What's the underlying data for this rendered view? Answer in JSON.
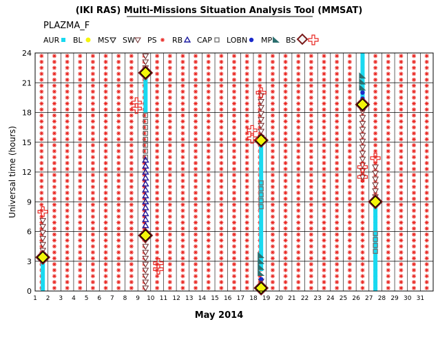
{
  "title": "(IKI RAS) Multi-Missions Situation Analysis Tool (MMSAT)",
  "subtitle": "PLAZMA_F",
  "legend": [
    {
      "label": "AUR",
      "symbol": "square",
      "color": "#19d9f0"
    },
    {
      "label": "BL",
      "symbol": "circle",
      "color": "#f5f50a"
    },
    {
      "label": "MS",
      "symbol": "triangle-down",
      "color": "#000000"
    },
    {
      "label": "SW",
      "symbol": "triangle-down",
      "color": "#6a2a2a"
    },
    {
      "label": "PS",
      "symbol": "star",
      "color": "#e8231e"
    },
    {
      "label": "RB",
      "symbol": "triangle-up",
      "color": "#1a1aa0"
    },
    {
      "label": "CAP",
      "symbol": "open-square",
      "color": "#6e6e6e"
    },
    {
      "label": "LOBN",
      "symbol": "filled-circle",
      "color": "#1a2acb"
    },
    {
      "label": "MP",
      "symbol": "wedge",
      "color": "#2a6e6e"
    },
    {
      "label": "BS",
      "symbol": "diamond",
      "color": "#7a1a1a"
    },
    {
      "label": "",
      "symbol": "cross",
      "color": "#e8231e"
    }
  ],
  "chart_data": {
    "type": "scatter",
    "xlabel": "May 2014",
    "ylabel": "Universal time (hours)",
    "xlim": [
      1,
      32
    ],
    "ylim": [
      0,
      24
    ],
    "xticks": [
      "1",
      "2",
      "3",
      "4",
      "5",
      "6",
      "7",
      "8",
      "9",
      "10",
      "11",
      "12",
      "13",
      "14",
      "15",
      "16",
      "17",
      "18",
      "19",
      "20",
      "21",
      "22",
      "23",
      "24",
      "25",
      "26",
      "27",
      "28",
      "29",
      "30",
      "31"
    ],
    "yticks": [
      "0",
      "3",
      "6",
      "9",
      "12",
      "15",
      "18",
      "21",
      "24"
    ],
    "grid": true,
    "background_region": {
      "name": "PS",
      "symbol": "star",
      "color": "#e8231e",
      "x_range": [
        1.5,
        31.5
      ],
      "y_range": [
        0,
        24
      ],
      "x_step": 1,
      "y_step": 0.6
    },
    "series": [
      {
        "name": "AUR",
        "symbol": "square",
        "color": "#19d9f0",
        "segments": [
          {
            "x": 1.6,
            "y": [
              0,
              2.8
            ]
          },
          {
            "x": 9.6,
            "y": [
              18,
              21.5
            ]
          },
          {
            "x": 18.6,
            "y": [
              2,
              15
            ]
          },
          {
            "x": 26.5,
            "y": [
              19,
              24
            ]
          },
          {
            "x": 27.5,
            "y": [
              0,
              8.8
            ]
          }
        ]
      },
      {
        "name": "SW",
        "symbol": "triangle-down",
        "color": "#6a2a2a",
        "segments": [
          {
            "x": 1.6,
            "y": [
              3.5,
              7.5
            ]
          },
          {
            "x": 9.6,
            "y": [
              0.3,
              5.3
            ]
          },
          {
            "x": 9.6,
            "y": [
              22.5,
              24
            ]
          },
          {
            "x": 18.6,
            "y": [
              15.5,
              20
            ]
          },
          {
            "x": 18.6,
            "y": [
              1,
              1
            ]
          },
          {
            "x": 26.5,
            "y": [
              11.5,
              18.5
            ]
          },
          {
            "x": 27.5,
            "y": [
              9.5,
              12.5
            ]
          }
        ]
      },
      {
        "name": "CAP",
        "symbol": "open-square",
        "color": "#6e6e6e",
        "segments": [
          {
            "x": 9.6,
            "y": [
              13.5,
              18
            ]
          },
          {
            "x": 18.6,
            "y": [
              8.5,
              11
            ]
          },
          {
            "x": 27.5,
            "y": [
              4,
              6
            ]
          }
        ]
      },
      {
        "name": "RB",
        "symbol": "triangle-up",
        "color": "#1a1aa0",
        "segments": [
          {
            "x": 9.6,
            "y": [
              6,
              13.5
            ]
          }
        ]
      },
      {
        "name": "LOBN",
        "symbol": "filled-circle",
        "color": "#1a2acb",
        "segments": [
          {
            "x": 18.6,
            "y": [
              1.2,
              1.6
            ]
          },
          {
            "x": 26.5,
            "y": [
              19.4,
              20.5
            ]
          }
        ]
      },
      {
        "name": "MP",
        "symbol": "wedge",
        "color": "#2a6e6e",
        "segments": [
          {
            "x": 18.6,
            "y": [
              1.8,
              4
            ]
          },
          {
            "x": 26.5,
            "y": [
              20.5,
              22
            ]
          }
        ]
      }
    ],
    "points": [
      {
        "name": "BS",
        "symbol": "diamond",
        "x": 1.6,
        "y": 3.4
      },
      {
        "name": "BS",
        "symbol": "diamond",
        "x": 9.6,
        "y": 22
      },
      {
        "name": "BS",
        "symbol": "diamond",
        "x": 9.6,
        "y": 5.6
      },
      {
        "name": "BS",
        "symbol": "diamond",
        "x": 18.6,
        "y": 15.2
      },
      {
        "name": "BS",
        "symbol": "diamond",
        "x": 18.6,
        "y": 0.3
      },
      {
        "name": "BS",
        "symbol": "diamond",
        "x": 26.5,
        "y": 18.8
      },
      {
        "name": "BS",
        "symbol": "diamond",
        "x": 27.5,
        "y": 9
      },
      {
        "name": "cross",
        "symbol": "cross",
        "x": 1.6,
        "y": 8
      },
      {
        "name": "cross",
        "symbol": "cross",
        "x": 8.9,
        "y": 19
      },
      {
        "name": "cross",
        "symbol": "cross",
        "x": 8.9,
        "y": 18.4
      },
      {
        "name": "cross",
        "symbol": "cross",
        "x": 10.6,
        "y": 2.8
      },
      {
        "name": "cross",
        "symbol": "cross",
        "x": 10.6,
        "y": 2.2
      },
      {
        "name": "cross",
        "symbol": "cross",
        "x": 17.9,
        "y": 16.2
      },
      {
        "name": "cross",
        "symbol": "cross",
        "x": 17.9,
        "y": 15.4
      },
      {
        "name": "cross",
        "symbol": "cross",
        "x": 18.6,
        "y": 20
      },
      {
        "name": "cross",
        "symbol": "cross",
        "x": 26.5,
        "y": 11.5
      },
      {
        "name": "cross",
        "symbol": "cross",
        "x": 26.5,
        "y": 12.5
      },
      {
        "name": "cross",
        "symbol": "cross",
        "x": 27.5,
        "y": 13.4
      }
    ]
  }
}
